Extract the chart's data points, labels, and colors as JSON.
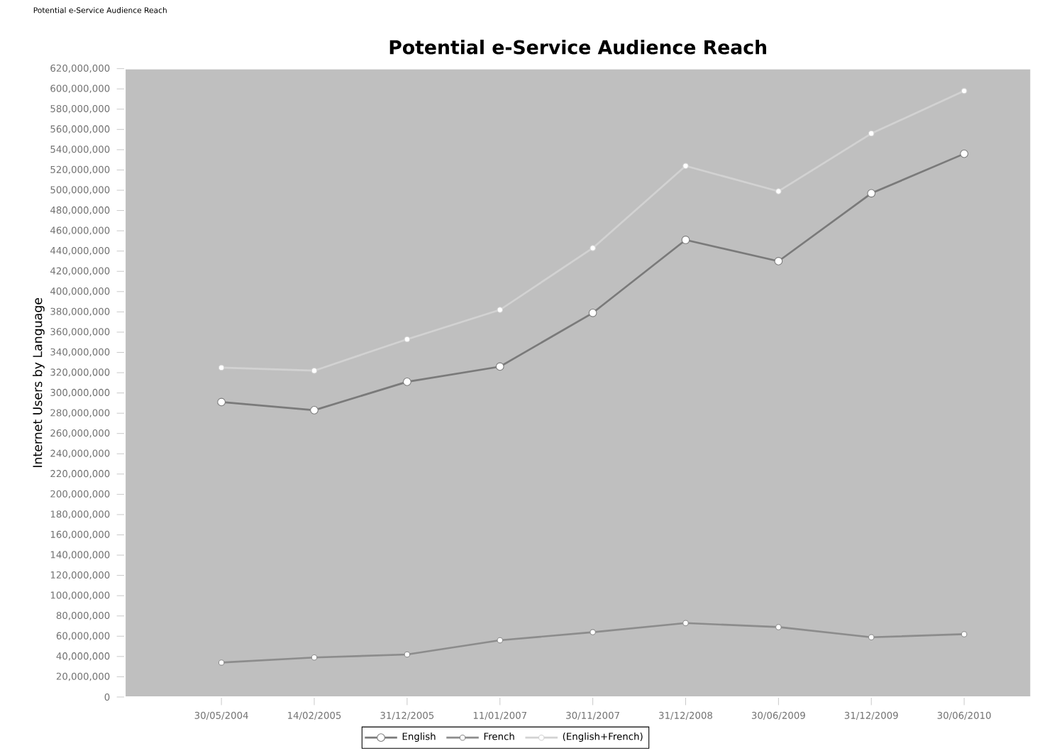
{
  "chart_data": {
    "type": "line",
    "title": "Potential e-Service Audience Reach",
    "ylabel": "Internet Users by Language",
    "annotations": [
      "Potential e-Service Audience Reach"
    ],
    "categories": [
      "30/05/2004",
      "14/02/2005",
      "31/12/2005",
      "11/01/2007",
      "30/11/2007",
      "31/12/2008",
      "30/06/2009",
      "31/12/2009",
      "30/06/2010"
    ],
    "series": [
      {
        "name": "English",
        "color": "#7a7a7a",
        "values": [
          291000000,
          283000000,
          311000000,
          326000000,
          379000000,
          451000000,
          430000000,
          497000000,
          536000000
        ]
      },
      {
        "name": "French",
        "color": "#8c8c8c",
        "values": [
          34000000,
          39000000,
          42000000,
          56000000,
          64000000,
          73000000,
          69000000,
          59000000,
          62000000
        ]
      },
      {
        "name": "(English+French)",
        "color": "#d2d2d2",
        "values": [
          325000000,
          322000000,
          353000000,
          382000000,
          443000000,
          524000000,
          499000000,
          556000000,
          598000000
        ]
      }
    ],
    "ylim": [
      0,
      620000000
    ],
    "yticks": [
      {
        "value": 0,
        "label": "0"
      },
      {
        "value": 20000000,
        "label": "20,000,000"
      },
      {
        "value": 40000000,
        "label": "40,000,000"
      },
      {
        "value": 60000000,
        "label": "60,000,000"
      },
      {
        "value": 80000000,
        "label": "80,000,000"
      },
      {
        "value": 100000000,
        "label": "100,000,000"
      },
      {
        "value": 120000000,
        "label": "120,000,000"
      },
      {
        "value": 140000000,
        "label": "140,000,000"
      },
      {
        "value": 160000000,
        "label": "160,000,000"
      },
      {
        "value": 180000000,
        "label": "180,000,000"
      },
      {
        "value": 200000000,
        "label": "200,000,000"
      },
      {
        "value": 220000000,
        "label": "220,000,000"
      },
      {
        "value": 240000000,
        "label": "240,000,000"
      },
      {
        "value": 260000000,
        "label": "260,000,000"
      },
      {
        "value": 280000000,
        "label": "280,000,000"
      },
      {
        "value": 300000000,
        "label": "300,000,000"
      },
      {
        "value": 320000000,
        "label": "320,000,000"
      },
      {
        "value": 340000000,
        "label": "340,000,000"
      },
      {
        "value": 360000000,
        "label": "360,000,000"
      },
      {
        "value": 380000000,
        "label": "380,000,000"
      },
      {
        "value": 400000000,
        "label": "400,000,000"
      },
      {
        "value": 420000000,
        "label": "420,000,000"
      },
      {
        "value": 440000000,
        "label": "440,000,000"
      },
      {
        "value": 460000000,
        "label": "460,000,000"
      },
      {
        "value": 480000000,
        "label": "480,000,000"
      },
      {
        "value": 500000000,
        "label": "500,000,000"
      },
      {
        "value": 520000000,
        "label": "520,000,000"
      },
      {
        "value": 540000000,
        "label": "540,000,000"
      },
      {
        "value": 560000000,
        "label": "560,000,000"
      },
      {
        "value": 580000000,
        "label": "580,000,000"
      },
      {
        "value": 600000000,
        "label": "600,000,000"
      },
      {
        "value": 620000000,
        "label": "620,000,000"
      }
    ],
    "legend": "bottom",
    "marker": "circle",
    "line_style": "solid"
  }
}
